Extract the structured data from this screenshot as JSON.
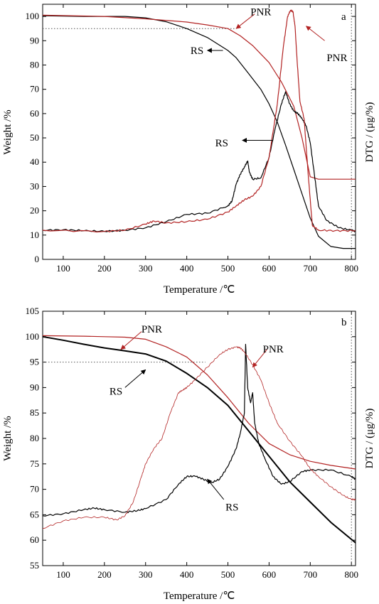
{
  "colors": {
    "black": "#000000",
    "red": "#b22222",
    "dark_red": "#a81818",
    "frame": "#000000"
  },
  "chart_data": [
    {
      "type": "line",
      "panel_label": "a",
      "xlabel": "Temperature /℃",
      "ylabel": "Weight /%",
      "y2label": "DTG / (μg/%)",
      "xlim": [
        50,
        810
      ],
      "ylim": [
        0,
        105
      ],
      "xticks": [
        100,
        200,
        300,
        400,
        500,
        600,
        700,
        800
      ],
      "yticks": [
        0,
        10,
        20,
        30,
        40,
        50,
        60,
        70,
        80,
        90,
        100
      ],
      "reference_line": {
        "y": 95,
        "x_range": [
          50,
          520
        ],
        "style": "dotted"
      },
      "vertical_reference": {
        "x": 800,
        "style": "dotted"
      },
      "series": [
        {
          "kind": "weight",
          "color": "#000000",
          "x": [
            50,
            150,
            250,
            300,
            350,
            400,
            450,
            500,
            520,
            550,
            580,
            600,
            620,
            640,
            660,
            680,
            700,
            720,
            750,
            780,
            810
          ],
          "y": [
            100.3,
            100.0,
            100.0,
            99.4,
            97.8,
            95.0,
            91.3,
            86.0,
            83.0,
            76.5,
            70.0,
            64.0,
            56.5,
            47.0,
            37.0,
            27.0,
            17.0,
            9.5,
            5.3,
            4.5,
            4.5
          ]
        },
        {
          "kind": "weight",
          "color": "#b22222",
          "x": [
            50,
            200,
            300,
            400,
            450,
            500,
            530,
            560,
            600,
            630,
            660,
            680,
            695,
            700,
            720,
            810
          ],
          "y": [
            100.5,
            100.0,
            99.0,
            97.7,
            96.5,
            95.0,
            92.0,
            88.0,
            81.0,
            73.0,
            63.0,
            50.0,
            38.0,
            34.0,
            33.0,
            33.0
          ]
        },
        {
          "kind": "dtg",
          "color": "#000000",
          "x": [
            50,
            100,
            150,
            200,
            250,
            300,
            350,
            400,
            450,
            500,
            510,
            520,
            530,
            540,
            548,
            552,
            560,
            580,
            600,
            615,
            630,
            640,
            650,
            660,
            670,
            680,
            690,
            700,
            710,
            720,
            740,
            770,
            800,
            810
          ],
          "y": [
            12.0,
            12.2,
            11.8,
            11.5,
            12.0,
            13.0,
            15.5,
            18.5,
            19.0,
            22.0,
            24.0,
            31.0,
            35.0,
            38.0,
            40.5,
            36.0,
            33.0,
            33.5,
            42.0,
            54.0,
            64.0,
            69.0,
            64.0,
            61.0,
            60.0,
            58.0,
            55.0,
            48.0,
            35.0,
            22.0,
            16.0,
            13.0,
            12.0,
            11.5
          ]
        },
        {
          "kind": "dtg",
          "color": "#b22222",
          "x": [
            50,
            200,
            250,
            300,
            320,
            350,
            400,
            450,
            500,
            520,
            540,
            560,
            580,
            600,
            620,
            635,
            645,
            652,
            658,
            663,
            668,
            675,
            685,
            695,
            705,
            720,
            760,
            810
          ],
          "y": [
            12.0,
            11.5,
            12.0,
            14.5,
            15.8,
            15.0,
            15.5,
            16.5,
            19.5,
            22.0,
            24.5,
            26.0,
            30.0,
            42.0,
            64.0,
            88.0,
            100.0,
            102.5,
            102.0,
            96.0,
            82.0,
            65.0,
            58.0,
            35.0,
            14.0,
            12.0,
            11.8,
            11.8
          ]
        }
      ],
      "annotations": [
        {
          "text": "PNR",
          "color": "#b22222",
          "anchor_data": [
            580,
            102
          ],
          "arrow_from_data": [
            565,
            101
          ],
          "arrow_to_data": [
            520,
            95
          ]
        },
        {
          "text": "PNR",
          "color": "#b22222",
          "anchor_data": [
            765,
            83
          ],
          "arrow_from_data": [
            735,
            90
          ],
          "arrow_to_data": [
            690,
            96
          ]
        },
        {
          "text": "RS",
          "color": "#000000",
          "anchor_data": [
            425,
            86
          ],
          "arrow_from_data": [
            488,
            86
          ],
          "arrow_to_data": [
            450,
            86
          ]
        },
        {
          "text": "RS",
          "color": "#000000",
          "anchor_data": [
            485,
            48
          ],
          "arrow_from_data": [
            608,
            49
          ],
          "arrow_to_data": [
            535,
            49
          ]
        }
      ]
    },
    {
      "type": "line",
      "panel_label": "b",
      "xlabel": "Temperature /℃",
      "ylabel": "Weight /%",
      "y2label": "DTG / (μg/%)",
      "xlim": [
        50,
        810
      ],
      "ylim": [
        55,
        105
      ],
      "xticks": [
        100,
        200,
        300,
        400,
        500,
        600,
        700,
        800
      ],
      "yticks": [
        55,
        60,
        65,
        70,
        75,
        80,
        85,
        90,
        95,
        100,
        105
      ],
      "reference_line": {
        "y": 95,
        "x_range": [
          50,
          445
        ],
        "style": "dotted"
      },
      "vertical_reference": {
        "x": 800,
        "style": "dotted"
      },
      "series": [
        {
          "kind": "weight",
          "color": "#000000",
          "x": [
            50,
            100,
            150,
            200,
            250,
            300,
            350,
            400,
            450,
            500,
            550,
            600,
            650,
            700,
            750,
            810
          ],
          "y": [
            100.0,
            99.3,
            98.5,
            97.8,
            97.2,
            96.6,
            95.2,
            92.8,
            90.0,
            86.5,
            81.5,
            76.5,
            71.5,
            67.5,
            63.5,
            59.5
          ]
        },
        {
          "kind": "weight",
          "color": "#b22222",
          "x": [
            50,
            150,
            200,
            250,
            300,
            350,
            400,
            450,
            500,
            550,
            600,
            650,
            700,
            750,
            810
          ],
          "y": [
            100.2,
            100.1,
            100.0,
            99.9,
            99.5,
            98.0,
            96.0,
            92.5,
            88.0,
            83.0,
            79.0,
            76.8,
            75.5,
            74.7,
            74.0
          ]
        },
        {
          "kind": "dtg",
          "color": "#000000",
          "x": [
            50,
            100,
            150,
            175,
            200,
            250,
            280,
            300,
            350,
            380,
            400,
            420,
            440,
            460,
            480,
            500,
            520,
            530,
            540,
            543,
            548,
            555,
            560,
            565,
            575,
            590,
            610,
            630,
            650,
            680,
            700,
            750,
            800,
            810
          ],
          "y": [
            64.8,
            65.2,
            66.0,
            66.3,
            66.0,
            65.5,
            65.8,
            66.2,
            68.0,
            71.0,
            72.5,
            72.6,
            72.0,
            71.3,
            72.0,
            74.5,
            78.0,
            81.0,
            85.0,
            98.5,
            90.0,
            87.0,
            89.0,
            83.0,
            79.0,
            76.0,
            72.5,
            71.0,
            71.5,
            73.5,
            73.8,
            73.8,
            72.5,
            72.0
          ]
        },
        {
          "kind": "dtg",
          "color": "#b22222",
          "x": [
            50,
            100,
            150,
            200,
            230,
            250,
            270,
            290,
            300,
            320,
            340,
            360,
            380,
            390,
            400,
            420,
            450,
            480,
            500,
            520,
            530,
            540,
            560,
            580,
            600,
            620,
            650,
            680,
            700,
            720,
            750,
            780,
            800,
            810
          ],
          "y": [
            62.3,
            63.8,
            64.5,
            64.5,
            64.0,
            64.8,
            67.5,
            72.5,
            75.0,
            78.0,
            80.0,
            85.0,
            89.0,
            89.5,
            90.0,
            91.5,
            94.0,
            96.5,
            97.5,
            98.0,
            97.8,
            97.0,
            94.5,
            91.5,
            87.0,
            83.0,
            79.5,
            76.5,
            74.0,
            72.5,
            70.5,
            68.8,
            68.0,
            68.0
          ]
        }
      ],
      "annotations": [
        {
          "text": "PNR",
          "color": "#b22222",
          "anchor_data": [
            315,
            101.5
          ],
          "arrow_from_data": [
            290,
            101
          ],
          "arrow_to_data": [
            240,
            97.5
          ]
        },
        {
          "text": "PNR",
          "color": "#b22222",
          "anchor_data": [
            610,
            97.6
          ],
          "arrow_from_data": [
            595,
            97.5
          ],
          "arrow_to_data": [
            560,
            94
          ]
        },
        {
          "text": "RS",
          "color": "#000000",
          "anchor_data": [
            228,
            89.3
          ],
          "arrow_from_data": [
            250,
            90
          ],
          "arrow_to_data": [
            300,
            93.5
          ]
        },
        {
          "text": "RS",
          "color": "#000000",
          "anchor_data": [
            510,
            66.5
          ],
          "arrow_from_data": [
            490,
            68
          ],
          "arrow_to_data": [
            450,
            72
          ]
        }
      ]
    }
  ]
}
